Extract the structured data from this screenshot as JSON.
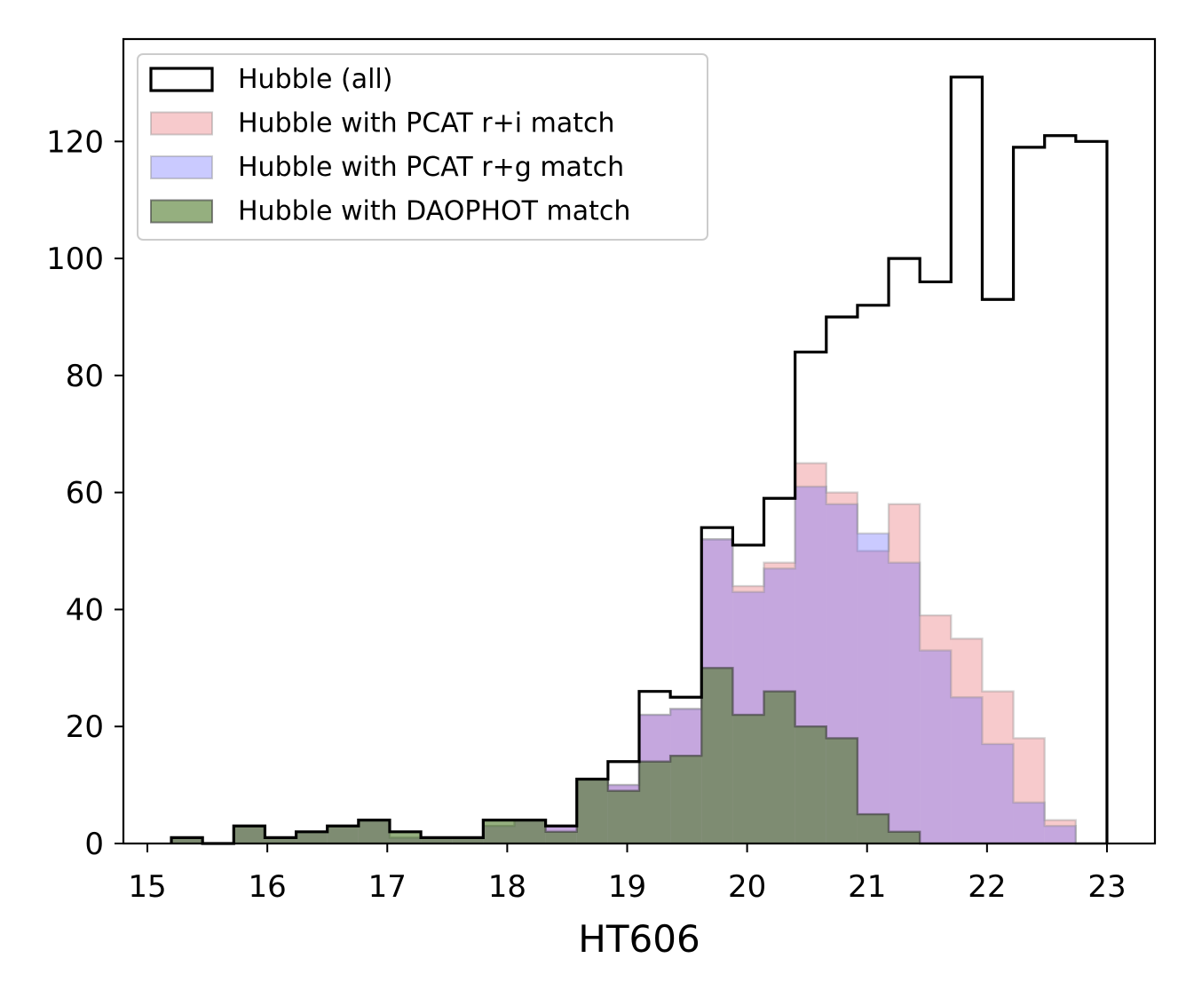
{
  "chart_data": {
    "type": "histogram",
    "xlabel": "HT606",
    "ylabel": "",
    "title": "",
    "xlim": [
      14.8,
      23.4
    ],
    "ylim": [
      0,
      137.5
    ],
    "xticks": [
      15,
      16,
      17,
      18,
      19,
      20,
      21,
      22,
      23
    ],
    "yticks": [
      0,
      20,
      40,
      60,
      80,
      100,
      120
    ],
    "grid": false,
    "legend_position": "upper-left",
    "bin_edges": [
      15.2,
      15.46,
      15.72,
      15.98,
      16.24,
      16.5,
      16.76,
      17.02,
      17.28,
      17.54,
      17.8,
      18.06,
      18.32,
      18.58,
      18.84,
      19.1,
      19.36,
      19.62,
      19.88,
      20.14,
      20.4,
      20.66,
      20.92,
      21.18,
      21.44,
      21.7,
      21.96,
      22.22,
      22.48,
      22.74,
      23.0
    ],
    "series": [
      {
        "name": "Hubble (all)",
        "style": "step",
        "color": "#000000",
        "values": [
          1,
          0,
          3,
          1,
          2,
          3,
          4,
          2,
          1,
          1,
          4,
          4,
          3,
          11,
          14,
          26,
          25,
          54,
          51,
          59,
          84,
          90,
          92,
          100,
          96,
          131,
          93,
          119,
          121,
          120
        ]
      },
      {
        "name": "Hubble with PCAT r+i match",
        "style": "filled",
        "color": "#e8686c",
        "values": [
          1,
          0,
          3,
          1,
          2,
          3,
          4,
          1,
          1,
          1,
          3,
          4,
          3,
          11,
          10,
          22,
          23,
          52,
          44,
          48,
          65,
          60,
          50,
          58,
          39,
          35,
          26,
          18,
          4,
          0
        ]
      },
      {
        "name": "Hubble with PCAT r+g match",
        "style": "filled",
        "color": "#6666ff",
        "values": [
          1,
          0,
          3,
          1,
          2,
          3,
          4,
          1,
          1,
          1,
          3,
          4,
          3,
          11,
          10,
          22,
          23,
          52,
          43,
          47,
          61,
          58,
          53,
          48,
          33,
          25,
          17,
          7,
          3,
          0
        ]
      },
      {
        "name": "Hubble with DAOPHOT match",
        "style": "filled",
        "color": "#4e7a2a",
        "values": [
          1,
          0,
          3,
          1,
          2,
          3,
          4,
          2,
          1,
          1,
          4,
          4,
          2,
          11,
          9,
          14,
          15,
          30,
          22,
          26,
          20,
          18,
          5,
          2,
          0,
          0,
          0,
          0,
          0,
          0
        ]
      }
    ]
  }
}
